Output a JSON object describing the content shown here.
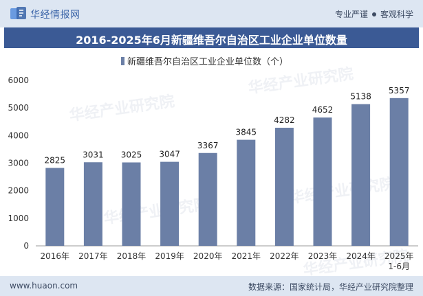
{
  "header": {
    "brand": "华经情报网",
    "tag1": "专业严谨",
    "tag2": "客观科学"
  },
  "title": "2016-2025年6月新疆维吾尔自治区工业企业单位数量",
  "footer": {
    "website": "www.huaon.com",
    "source": "数据来源：国家统计局，华经产业研究院整理"
  },
  "watermark": "华经产业研究院",
  "colors": {
    "bar": "#6b7fa6",
    "title_bg": "#3b5a95",
    "header_bg": "#dde6f2",
    "brand": "#3a64a8"
  },
  "chart_data": {
    "type": "bar",
    "categories": [
      "2016年",
      "2017年",
      "2018年",
      "2019年",
      "2020年",
      "2021年",
      "2022年",
      "2023年",
      "2024年",
      "2025年\n1-6月"
    ],
    "series": [
      {
        "name": "新疆维吾尔自治区工业企业单位数（个）",
        "values": [
          2825,
          3031,
          3025,
          3047,
          3367,
          3845,
          4282,
          4652,
          5138,
          5357
        ]
      }
    ],
    "ylim": [
      0,
      6000
    ],
    "yticks": [
      0,
      1000,
      2000,
      3000,
      4000,
      5000,
      6000
    ],
    "xlabel": "",
    "ylabel": "",
    "legend_position": "top-center",
    "grid": false
  }
}
